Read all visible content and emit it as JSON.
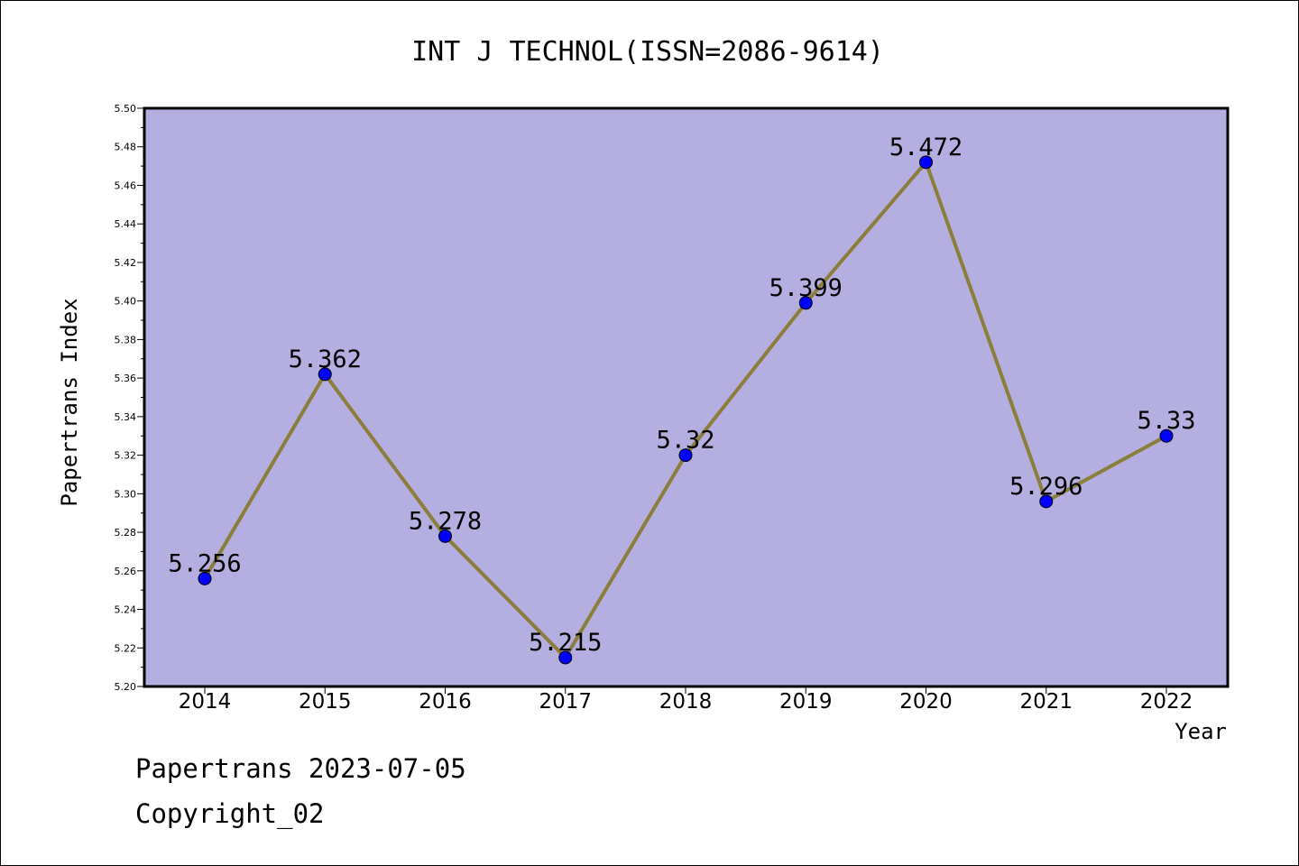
{
  "chart_data": {
    "type": "line",
    "title": "INT J TECHNOL(ISSN=2086-9614)",
    "xlabel": "Year",
    "ylabel": "Papertrans Index",
    "categories": [
      "2014",
      "2015",
      "2016",
      "2017",
      "2018",
      "2019",
      "2020",
      "2021",
      "2022"
    ],
    "values": [
      5.256,
      5.362,
      5.278,
      5.215,
      5.32,
      5.399,
      5.472,
      5.296,
      5.33
    ],
    "data_labels": [
      "5.256",
      "5.362",
      "5.278",
      "5.215",
      "5.32",
      "5.399",
      "5.472",
      "5.296",
      "5.33"
    ],
    "ylim": [
      5.2,
      5.5
    ],
    "yticks": [
      "5.20",
      "5.22",
      "5.24",
      "5.26",
      "5.28",
      "5.30",
      "5.32",
      "5.34",
      "5.36",
      "5.38",
      "5.40",
      "5.42",
      "5.44",
      "5.46",
      "5.48",
      "5.50"
    ],
    "grid": false,
    "colors": {
      "plot_background": "#b4aee1",
      "line": "#8b7d3a",
      "marker": "#0000ff"
    }
  },
  "footer": {
    "source": "Papertrans 2023-07-05",
    "copyright": "Copyright_02"
  }
}
